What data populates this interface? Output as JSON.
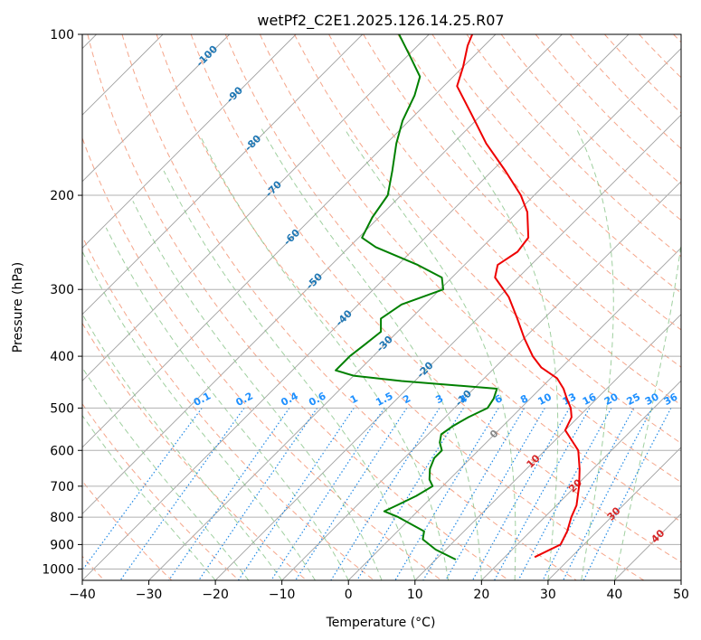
{
  "chart_data": {
    "type": "line",
    "chart_subtype": "skew-T log-P diagram",
    "title": "wetPf2_C2E1.2025.126.14.25.R07",
    "xlabel": "Temperature (°C)",
    "ylabel": "Pressure (hPa)",
    "xlim": [
      -40,
      50
    ],
    "ylim": [
      1050,
      100
    ],
    "y_scale": "log",
    "x_ticks": [
      -40,
      -30,
      -20,
      -10,
      0,
      10,
      20,
      30,
      40,
      50
    ],
    "x_tick_labels": [
      "−40",
      "−30",
      "−20",
      "−10",
      "0",
      "10",
      "20",
      "30",
      "40",
      "50"
    ],
    "y_ticks": [
      1000,
      900,
      800,
      700,
      600,
      500,
      400,
      300,
      200,
      100
    ],
    "y_tick_labels": [
      "1000",
      "900",
      "800",
      "700",
      "600",
      "500",
      "400",
      "300",
      "200",
      "100"
    ],
    "grid": true,
    "colors": {
      "temperature": "#ee0000",
      "dewpoint": "#008000",
      "isotherm": "#a0a0a0",
      "dry_adiabat": "#f5a58a",
      "moist_adiabat": "#7fbf7f",
      "mixing_ratio": "#1e88e5",
      "pseudo_adiabat": "#c8b090",
      "label_isotherm": "#1f77b4",
      "label_mixing_ratio": "#1e90ff",
      "label_warm": "#d62728",
      "label_zero": "#888888"
    },
    "series": [
      {
        "name": "",
        "color": "#ee0000",
        "points": [
          [
            950,
            24.5
          ],
          [
            900,
            26.5
          ],
          [
            850,
            25.5
          ],
          [
            800,
            24.0
          ],
          [
            760,
            23.0
          ],
          [
            700,
            20.5
          ],
          [
            650,
            18.0
          ],
          [
            600,
            15.0
          ],
          [
            550,
            10.0
          ],
          [
            520,
            9.0
          ],
          [
            500,
            7.5
          ],
          [
            480,
            5.5
          ],
          [
            460,
            3.5
          ],
          [
            440,
            1.0
          ],
          [
            420,
            -3.0
          ],
          [
            400,
            -6.0
          ],
          [
            370,
            -10.0
          ],
          [
            340,
            -14.0
          ],
          [
            310,
            -18.5
          ],
          [
            285,
            -23.5
          ],
          [
            270,
            -25.0
          ],
          [
            255,
            -24.0
          ],
          [
            240,
            -24.5
          ],
          [
            215,
            -28.5
          ],
          [
            200,
            -32.0
          ],
          [
            180,
            -38.0
          ],
          [
            160,
            -45.0
          ],
          [
            140,
            -52.0
          ],
          [
            125,
            -58.0
          ],
          [
            115,
            -60.0
          ],
          [
            105,
            -62.5
          ],
          [
            100,
            -63.5
          ]
        ]
      },
      {
        "name": "",
        "color": "#008000",
        "points": [
          [
            960,
            13.0
          ],
          [
            920,
            8.5
          ],
          [
            880,
            5.0
          ],
          [
            850,
            4.0
          ],
          [
            800,
            -2.0
          ],
          [
            780,
            -5.0
          ],
          [
            760,
            -4.0
          ],
          [
            730,
            -2.5
          ],
          [
            700,
            -1.5
          ],
          [
            680,
            -3.0
          ],
          [
            650,
            -4.5
          ],
          [
            620,
            -5.5
          ],
          [
            600,
            -5.5
          ],
          [
            580,
            -7.0
          ],
          [
            560,
            -8.0
          ],
          [
            540,
            -7.5
          ],
          [
            520,
            -6.5
          ],
          [
            500,
            -5.0
          ],
          [
            480,
            -5.5
          ],
          [
            460,
            -6.5
          ],
          [
            445,
            -22.0
          ],
          [
            435,
            -30.0
          ],
          [
            425,
            -33.5
          ],
          [
            400,
            -33.5
          ],
          [
            380,
            -33.0
          ],
          [
            360,
            -32.5
          ],
          [
            340,
            -34.5
          ],
          [
            320,
            -33.5
          ],
          [
            300,
            -29.5
          ],
          [
            285,
            -31.5
          ],
          [
            270,
            -37.0
          ],
          [
            250,
            -46.0
          ],
          [
            240,
            -49.5
          ],
          [
            220,
            -51.0
          ],
          [
            200,
            -52.0
          ],
          [
            180,
            -55.0
          ],
          [
            160,
            -58.5
          ],
          [
            145,
            -61.0
          ],
          [
            130,
            -63.0
          ],
          [
            120,
            -65.0
          ],
          [
            110,
            -69.5
          ],
          [
            100,
            -74.5
          ]
        ]
      }
    ],
    "isotherm_labels": [
      {
        "t": -100,
        "p": 110,
        "text": "-100"
      },
      {
        "t": -90,
        "p": 130,
        "text": "-90"
      },
      {
        "t": -80,
        "p": 160,
        "text": "-80"
      },
      {
        "t": -70,
        "p": 195,
        "text": "-70"
      },
      {
        "t": -60,
        "p": 240,
        "text": "-60"
      },
      {
        "t": -50,
        "p": 290,
        "text": "-50"
      },
      {
        "t": -40,
        "p": 340,
        "text": "-40"
      },
      {
        "t": -30,
        "p": 380,
        "text": "-30"
      },
      {
        "t": -20,
        "p": 425,
        "text": "-20"
      },
      {
        "t": -10,
        "p": 480,
        "text": "-10"
      },
      {
        "t": 0,
        "p": 560,
        "text": "0"
      },
      {
        "t": 10,
        "p": 630,
        "text": "10"
      },
      {
        "t": 20,
        "p": 700,
        "text": "20"
      },
      {
        "t": 30,
        "p": 790,
        "text": "30"
      },
      {
        "t": 40,
        "p": 870,
        "text": "40"
      }
    ],
    "mixing_ratio_lines": [
      0.1,
      0.2,
      0.4,
      0.6,
      1,
      1.5,
      2,
      3,
      4,
      6,
      8,
      10,
      13,
      16,
      20,
      25,
      30,
      36
    ],
    "mixing_ratio_labels": [
      "0.1",
      "0.2",
      "0.4",
      "0.6",
      "1",
      "1.5",
      "2",
      "3",
      "4",
      "6",
      "8",
      "10",
      "13",
      "16",
      "20",
      "25",
      "30",
      "36"
    ]
  }
}
